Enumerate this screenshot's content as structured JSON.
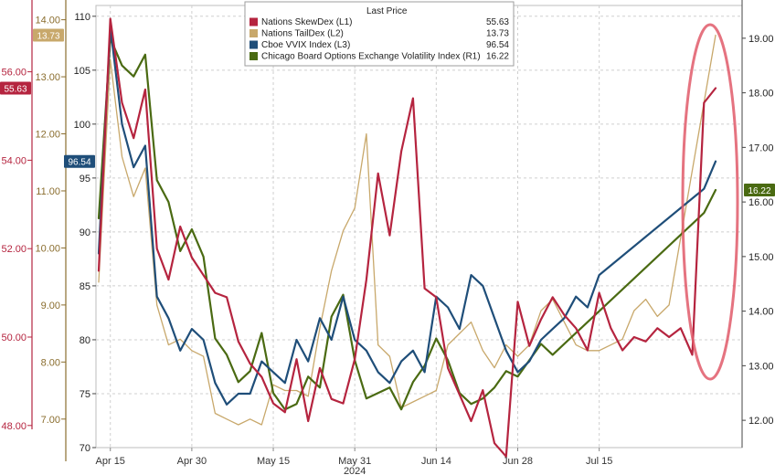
{
  "chart_data": {
    "type": "line",
    "xlabel": "2024",
    "x_tick_labels": [
      "Apr 15",
      "Apr 30",
      "May 15",
      "May 31",
      "Jun 14",
      "Jun 28",
      "Jul 15"
    ],
    "grid": true,
    "legend": {
      "placement": "top-center",
      "header": "Last Price",
      "entries": [
        {
          "label": "Nations SkewDex  (L1)",
          "value": "55.63",
          "color": "#b5243f"
        },
        {
          "label": "Nations TailDex  (L2)",
          "value": "13.73",
          "color": "#c8a86b"
        },
        {
          "label": "Cboe VVIX Index  (L3)",
          "value": "96.54",
          "color": "#1f4e79"
        },
        {
          "label": "Chicago Board Options Exchange Volatility Index  (R1)",
          "value": "16.22",
          "color": "#4a6a12"
        }
      ]
    },
    "axes": {
      "L1": {
        "ticks": [
          "56.00",
          "54.00",
          "52.00",
          "50.00",
          "48.00"
        ],
        "range": [
          47.5,
          57.5
        ],
        "color": "#b5243f"
      },
      "L2": {
        "ticks": [
          "14.00",
          "13.00",
          "12.00",
          "11.00",
          "10.00",
          "9.00",
          "8.00",
          "7.00"
        ],
        "range": [
          6.5,
          14.25
        ],
        "color": "#8a6d2e"
      },
      "L3": {
        "ticks": [
          "110",
          "105",
          "100",
          "95",
          "90",
          "85",
          "80",
          "75",
          "70"
        ],
        "range": [
          70,
          111
        ],
        "color": "#222222"
      },
      "R1": {
        "ticks": [
          "19.00",
          "18.00",
          "17.00",
          "16.00",
          "15.00",
          "14.00",
          "13.00",
          "12.00"
        ],
        "range": [
          11.5,
          19.6
        ],
        "color": "#222222"
      }
    },
    "badges": [
      {
        "axis": "L2",
        "text": "13.73",
        "color": "#c8a86b"
      },
      {
        "axis": "L1",
        "text": "55.63",
        "color": "#b5243f"
      },
      {
        "axis": "L3",
        "text": "96.54",
        "color": "#1f4e79"
      },
      {
        "axis": "R1",
        "text": "16.22",
        "color": "#4a6a12"
      }
    ],
    "annotation": {
      "type": "ellipse",
      "color": "#e05a6a"
    },
    "series": [
      {
        "name": "Nations SkewDex",
        "axis": "L1",
        "color": "#b5243f",
        "values": [
          51.5,
          57.2,
          55.3,
          54.5,
          55.6,
          52.0,
          51.3,
          52.5,
          51.8,
          51.4,
          51.0,
          50.9,
          49.9,
          49.4,
          49.1,
          48.5,
          48.3,
          49.5,
          48.1,
          49.3,
          48.6,
          48.5,
          49.5,
          51.3,
          53.7,
          52.3,
          54.2,
          55.4,
          51.1,
          50.9,
          49.3,
          48.7,
          48.1,
          48.8,
          47.6,
          47.3,
          50.8,
          49.8,
          50.4,
          50.9,
          50.5,
          50.2,
          49.7,
          51.0,
          50.2,
          49.7,
          50.0,
          49.9,
          50.2,
          50.0,
          50.2,
          49.6,
          55.3,
          55.63
        ],
        "x": [
          0,
          1,
          2,
          3,
          4,
          5,
          6,
          7,
          8,
          9,
          10,
          11,
          12,
          13,
          14,
          15,
          16,
          17,
          18,
          19,
          20,
          21,
          22,
          23,
          24,
          25,
          26,
          27,
          28,
          29,
          30,
          31,
          32,
          33,
          34,
          35,
          36,
          37,
          38,
          39,
          40,
          41,
          42,
          43,
          44,
          45,
          46,
          47,
          48,
          49,
          50,
          51,
          52,
          53
        ]
      },
      {
        "name": "Nations TailDex",
        "axis": "L2",
        "color": "#c8a86b",
        "values": [
          9.4,
          13.3,
          11.6,
          10.9,
          11.4,
          9.0,
          8.3,
          8.4,
          8.2,
          8.1,
          7.1,
          7.0,
          6.9,
          7.0,
          6.9,
          7.6,
          7.5,
          7.5,
          7.4,
          8.6,
          9.6,
          10.3,
          10.7,
          12.0,
          8.3,
          8.1,
          7.2,
          7.3,
          7.4,
          7.5,
          8.3,
          8.5,
          8.7,
          8.2,
          7.9,
          8.3,
          8.1,
          8.3,
          8.9,
          9.1,
          8.7,
          8.3,
          8.2,
          8.2,
          8.3,
          8.4,
          8.9,
          9.1,
          8.8,
          9.0,
          13.73
        ],
        "x": [
          0,
          1,
          2,
          3,
          4,
          5,
          6,
          7,
          8,
          9,
          10,
          11,
          12,
          13,
          14,
          15,
          16,
          17,
          18,
          19,
          20,
          21,
          22,
          23,
          24,
          25,
          26,
          27,
          28,
          29,
          30,
          31,
          32,
          33,
          34,
          35,
          36,
          37,
          38,
          39,
          40,
          41,
          42,
          43,
          44,
          45,
          46,
          47,
          48,
          49,
          53
        ]
      },
      {
        "name": "Cboe VVIX Index",
        "axis": "L3",
        "color": "#1f4e79",
        "values": [
          88,
          109,
          100,
          96,
          98,
          84,
          82,
          79,
          81,
          80,
          76,
          74,
          75,
          75,
          78,
          77,
          76,
          80,
          78,
          82,
          80,
          84,
          80,
          79,
          77,
          76,
          78,
          79,
          77,
          84,
          83,
          81,
          86,
          85,
          82,
          79,
          77,
          78,
          80,
          81,
          82,
          84,
          83,
          86,
          94,
          96.54
        ],
        "x": [
          0,
          1,
          2,
          3,
          4,
          5,
          6,
          7,
          8,
          9,
          10,
          11,
          12,
          13,
          14,
          15,
          16,
          17,
          18,
          19,
          20,
          21,
          22,
          23,
          24,
          25,
          26,
          27,
          28,
          29,
          30,
          31,
          32,
          33,
          34,
          35,
          36,
          37,
          38,
          39,
          40,
          41,
          42,
          43,
          52,
          53
        ]
      },
      {
        "name": "Chicago Board Options Exchange Volatility Index",
        "axis": "R1",
        "color": "#4a6a12",
        "values": [
          15.7,
          19.0,
          18.5,
          18.3,
          18.7,
          16.4,
          16.0,
          15.1,
          15.5,
          15.0,
          13.5,
          13.2,
          12.7,
          12.9,
          13.6,
          12.5,
          12.2,
          12.3,
          12.8,
          12.6,
          13.9,
          14.3,
          13.1,
          12.4,
          12.5,
          12.6,
          12.2,
          12.7,
          13.0,
          13.5,
          13.1,
          12.5,
          12.3,
          12.4,
          12.6,
          12.9,
          12.8,
          13.1,
          13.4,
          13.2,
          15.8,
          16.22
        ],
        "x": [
          0,
          1,
          2,
          3,
          4,
          5,
          6,
          7,
          8,
          9,
          10,
          11,
          12,
          13,
          14,
          15,
          16,
          17,
          18,
          19,
          20,
          21,
          22,
          23,
          24,
          25,
          26,
          27,
          28,
          29,
          30,
          31,
          32,
          33,
          34,
          35,
          36,
          37,
          38,
          39,
          52,
          53
        ]
      }
    ]
  }
}
